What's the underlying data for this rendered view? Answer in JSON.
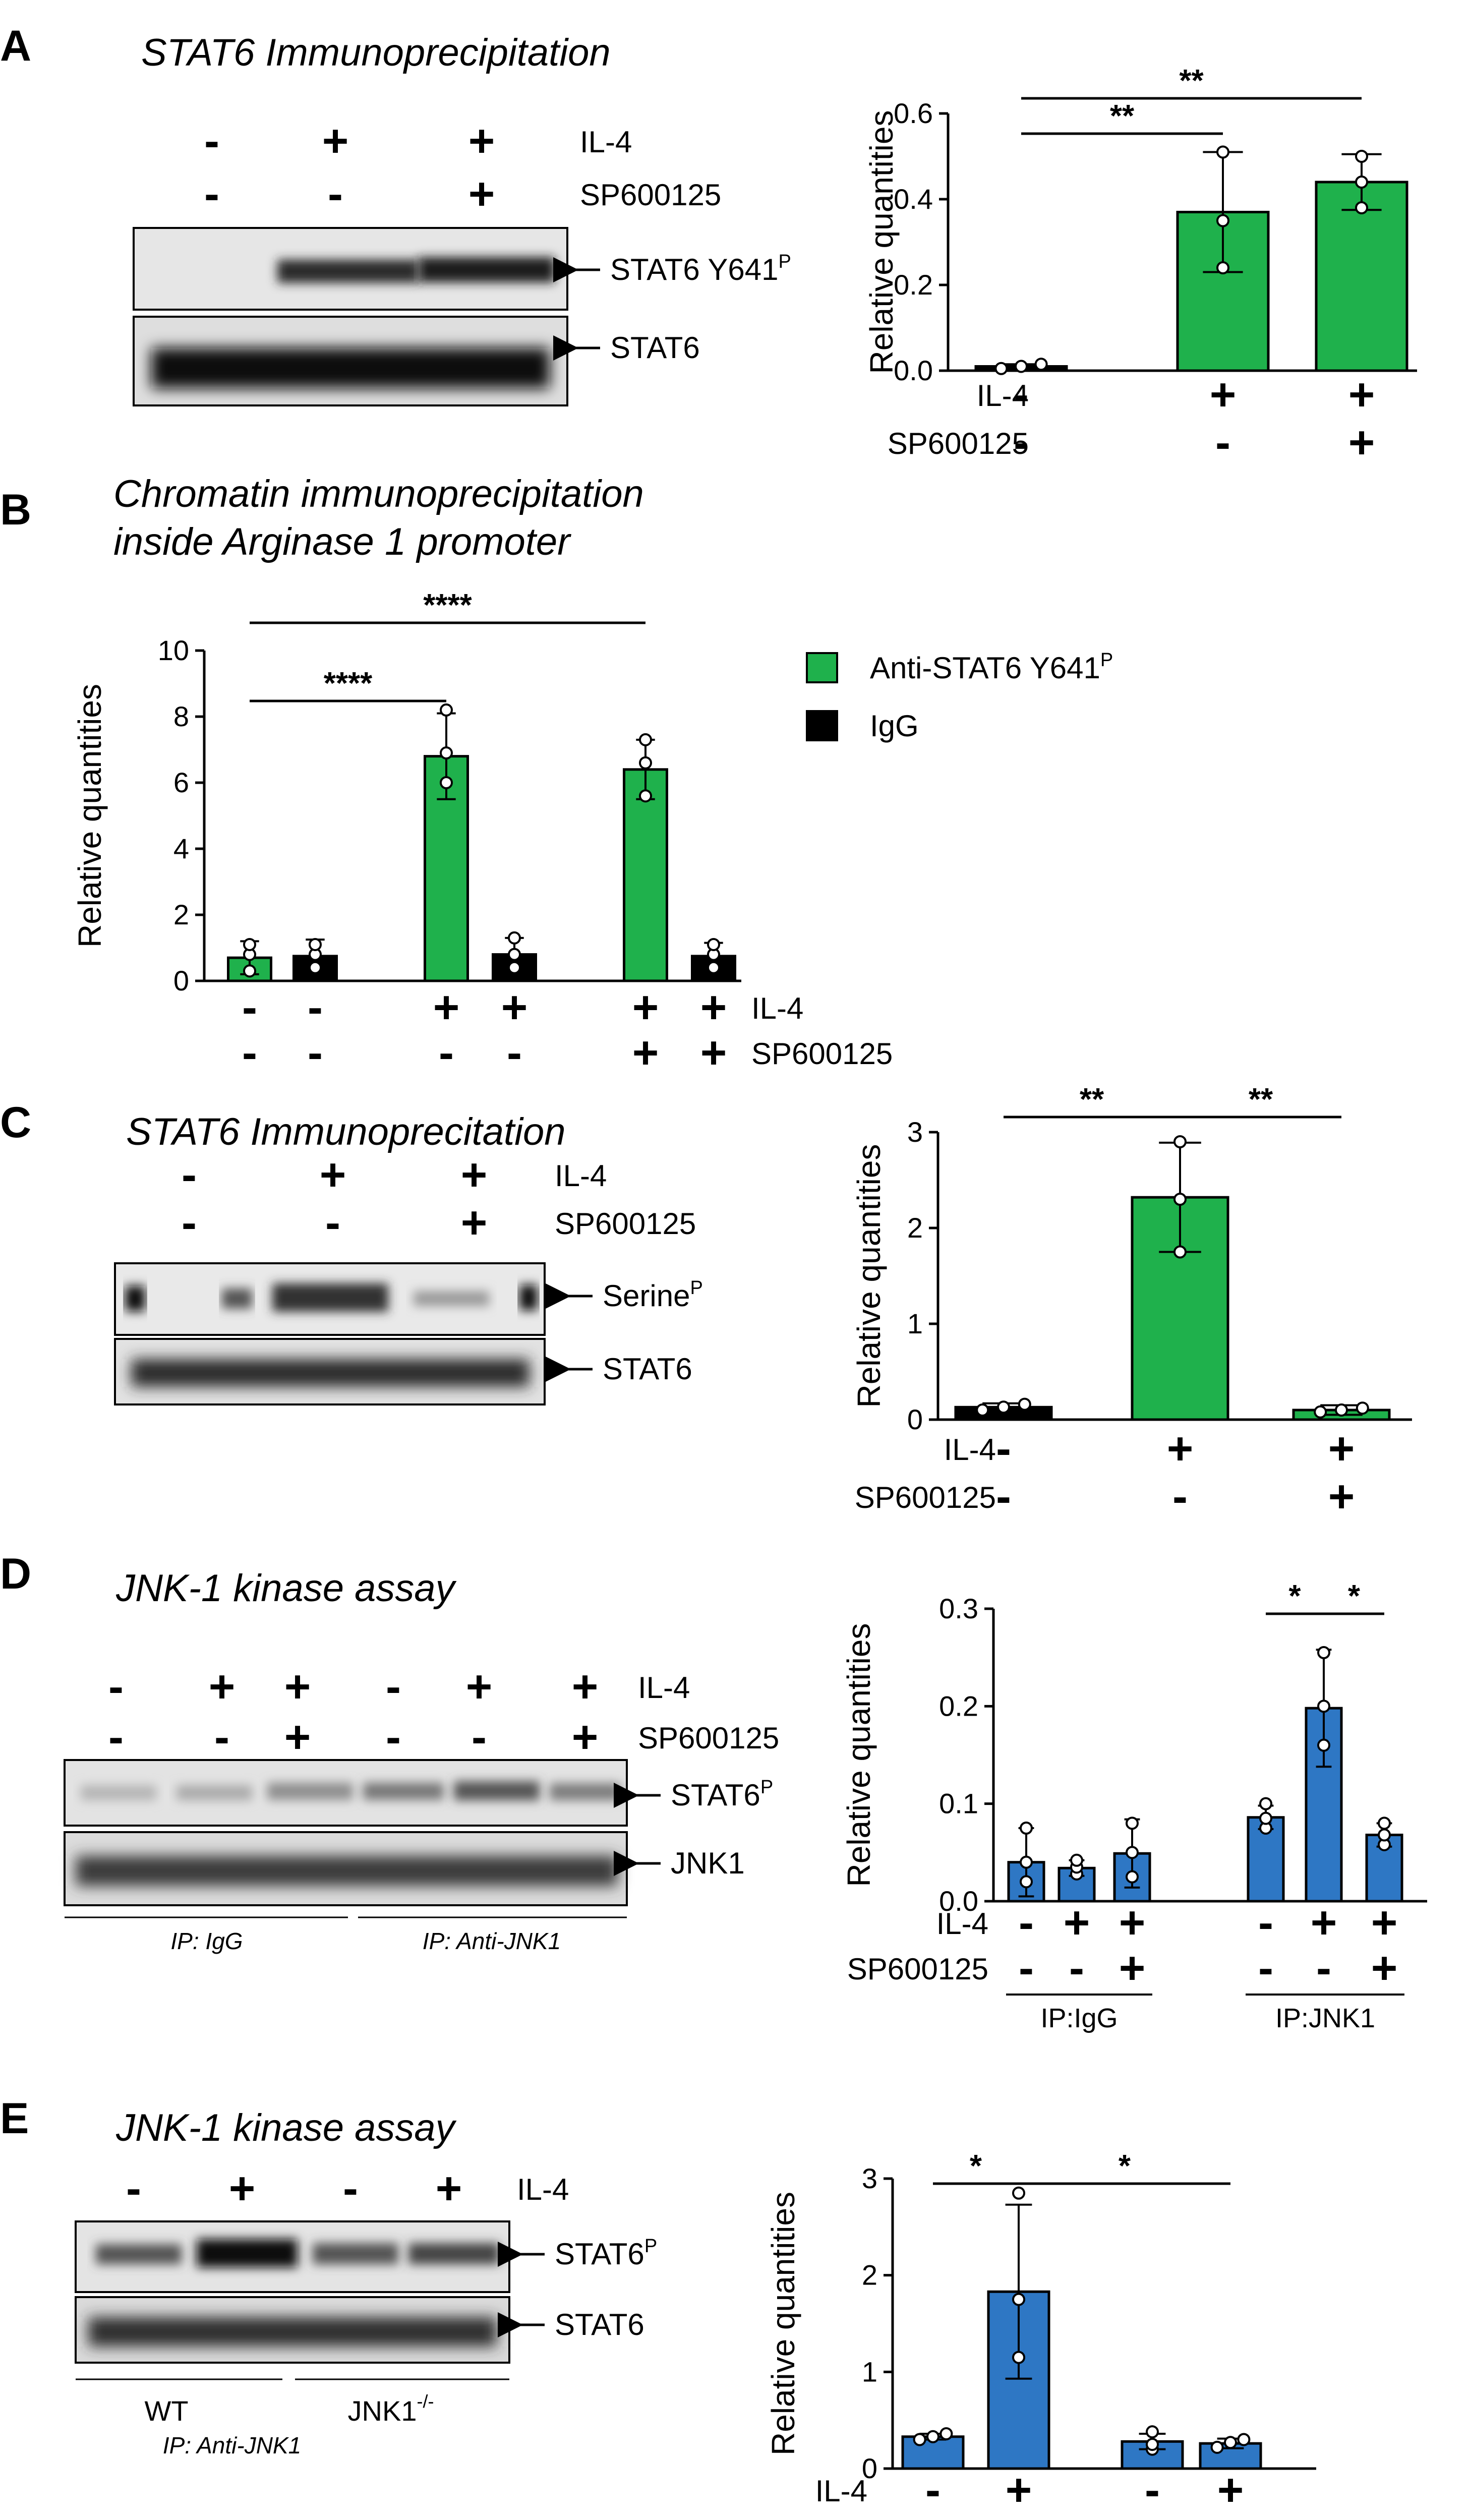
{
  "colors": {
    "green": "#1fb14c",
    "blue": "#2e77c4",
    "black": "#000000",
    "blot_bg": "#e4e4e4"
  },
  "panelA": {
    "letter": "A",
    "title": "STAT6 Immunoprecipitation",
    "rows": [
      {
        "label": "IL-4",
        "signs": [
          "-",
          "+",
          "+"
        ]
      },
      {
        "label": "SP600125",
        "signs": [
          "-",
          "-",
          "+"
        ]
      }
    ],
    "bands": [
      {
        "label": "STAT6 Y641",
        "sup": "P"
      },
      {
        "label": "STAT6",
        "sup": ""
      }
    ],
    "chart_data": {
      "type": "bar",
      "ylabel": "Relative quantities",
      "ylim": [
        0,
        0.6
      ],
      "yticks": [
        "0.0",
        "0.2",
        "0.4",
        "0.6"
      ],
      "values": [
        0.01,
        0.37,
        0.44
      ],
      "errors": [
        0.005,
        0.14,
        0.065
      ],
      "dots": [
        [
          0.005,
          0.01,
          0.015
        ],
        [
          0.24,
          0.35,
          0.51
        ],
        [
          0.38,
          0.44,
          0.5
        ]
      ],
      "colors": [
        "black",
        "green",
        "green"
      ],
      "rows": [
        {
          "label": "IL-4",
          "signs": [
            "-",
            "+",
            "+"
          ]
        },
        {
          "label": "SP600125",
          "signs": [
            "-",
            "-",
            "+"
          ]
        }
      ],
      "sig": [
        {
          "from": 0,
          "to": 1,
          "text": "**"
        },
        {
          "from": 0,
          "to": 2,
          "text": "**"
        }
      ]
    }
  },
  "panelB": {
    "letter": "B",
    "title_line1": "Chromatin immunoprecipitation",
    "title_line2": "inside Arginase 1 promoter",
    "legend": [
      {
        "label": "Anti-STAT6 Y641",
        "sup": "P",
        "color": "green"
      },
      {
        "label": "IgG",
        "sup": "",
        "color": "black"
      }
    ],
    "chart_data": {
      "type": "bar",
      "ylabel": "Relative quantities",
      "ylim": [
        0,
        10
      ],
      "yticks": [
        "0",
        "2",
        "4",
        "6",
        "8",
        "10"
      ],
      "values": [
        0.7,
        0.75,
        6.8,
        0.8,
        6.4,
        0.75
      ],
      "errors": [
        0.5,
        0.5,
        1.3,
        0.5,
        0.9,
        0.4
      ],
      "dots": [
        [
          0.3,
          0.8,
          1.1
        ],
        [
          0.4,
          0.8,
          1.1
        ],
        [
          6.0,
          6.9,
          8.2
        ],
        [
          0.4,
          0.8,
          1.3
        ],
        [
          5.6,
          6.6,
          7.3
        ],
        [
          0.4,
          0.8,
          1.1
        ]
      ],
      "colors": [
        "green",
        "black",
        "green",
        "black",
        "green",
        "black"
      ],
      "rows": [
        {
          "label": "IL-4",
          "signs": [
            "-",
            "-",
            "+",
            "+",
            "+",
            "+"
          ]
        },
        {
          "label": "SP600125",
          "signs": [
            "-",
            "-",
            "-",
            "-",
            "+",
            "+"
          ]
        }
      ],
      "sig": [
        {
          "from": 0,
          "to": 2,
          "text": "****"
        },
        {
          "from": 0,
          "to": 4,
          "text": "****"
        }
      ]
    }
  },
  "panelC": {
    "letter": "C",
    "title": "STAT6 Immunoprecitation",
    "rows": [
      {
        "label": "IL-4",
        "signs": [
          "-",
          "+",
          "+"
        ]
      },
      {
        "label": "SP600125",
        "signs": [
          "-",
          "-",
          "+"
        ]
      }
    ],
    "bands": [
      {
        "label": "Serine",
        "sup": "P"
      },
      {
        "label": "STAT6",
        "sup": ""
      }
    ],
    "chart_data": {
      "type": "bar",
      "ylabel": "Relative quantities",
      "ylim": [
        0,
        3
      ],
      "yticks": [
        "0",
        "1",
        "2",
        "3"
      ],
      "values": [
        0.13,
        2.32,
        0.1
      ],
      "errors": [
        0.04,
        0.57,
        0.05
      ],
      "dots": [
        [
          0.1,
          0.13,
          0.16
        ],
        [
          1.75,
          2.3,
          2.9
        ],
        [
          0.08,
          0.1,
          0.12
        ]
      ],
      "colors": [
        "black",
        "green",
        "green"
      ],
      "rows": [
        {
          "label": "IL-4",
          "signs": [
            "-",
            "+",
            "+"
          ]
        },
        {
          "label": "SP600125",
          "signs": [
            "-",
            "-",
            "+"
          ]
        }
      ],
      "sig": [
        {
          "from": 0,
          "to": 1,
          "text": "**"
        },
        {
          "from": 1,
          "to": 2,
          "text": "**"
        }
      ]
    }
  },
  "panelD": {
    "letter": "D",
    "title": "JNK-1 kinase assay",
    "rows": [
      {
        "label": "IL-4",
        "signs": [
          "-",
          "+",
          "+",
          "-",
          "+",
          "+"
        ]
      },
      {
        "label": "SP600125",
        "signs": [
          "-",
          "-",
          "+",
          "-",
          "-",
          "+"
        ]
      }
    ],
    "bands": [
      {
        "label": "STAT6",
        "sup": "P"
      },
      {
        "label": "JNK1",
        "sup": ""
      }
    ],
    "groups": [
      "IP: IgG",
      "IP: Anti-JNK1"
    ],
    "chart_data": {
      "type": "bar",
      "ylabel": "Relative quantities",
      "ylim": [
        0,
        0.3
      ],
      "yticks": [
        "0.0",
        "0.1",
        "0.2",
        "0.3"
      ],
      "values": [
        0.04,
        0.034,
        0.049,
        0.086,
        0.198,
        0.068
      ],
      "errors": [
        0.035,
        0.008,
        0.035,
        0.012,
        0.06,
        0.012
      ],
      "dots": [
        [
          0.02,
          0.04,
          0.075
        ],
        [
          0.028,
          0.035,
          0.042
        ],
        [
          0.025,
          0.05,
          0.08
        ],
        [
          0.075,
          0.085,
          0.1
        ],
        [
          0.16,
          0.2,
          0.255
        ],
        [
          0.058,
          0.068,
          0.08
        ]
      ],
      "colors": [
        "blue",
        "blue",
        "blue",
        "blue",
        "blue",
        "blue"
      ],
      "rows": [
        {
          "label": "IL-4",
          "signs": [
            "-",
            "+",
            "+",
            "-",
            "+",
            "+"
          ]
        },
        {
          "label": "SP600125",
          "signs": [
            "-",
            "-",
            "+",
            "-",
            "-",
            "+"
          ]
        }
      ],
      "groups": [
        "IP:IgG",
        "IP:JNK1"
      ],
      "sig": [
        {
          "from": 3,
          "to": 4,
          "text": "*"
        },
        {
          "from": 4,
          "to": 5,
          "text": "*"
        }
      ]
    }
  },
  "panelE": {
    "letter": "E",
    "title": "JNK-1 kinase assay",
    "rows": [
      {
        "label": "IL-4",
        "signs": [
          "-",
          "+",
          "-",
          "+"
        ]
      }
    ],
    "bands": [
      {
        "label": "STAT6",
        "sup": "P"
      },
      {
        "label": "STAT6",
        "sup": ""
      }
    ],
    "groups": [
      {
        "label": "WT",
        "sup": ""
      },
      {
        "label": "JNK1",
        "sup": "-/-"
      }
    ],
    "footer": "IP: Anti-JNK1",
    "chart_data": {
      "type": "bar",
      "ylabel": "Relative quantities",
      "ylim": [
        0,
        3
      ],
      "yticks": [
        "0",
        "1",
        "2",
        "3"
      ],
      "values": [
        0.33,
        1.83,
        0.28,
        0.26
      ],
      "errors": [
        0.03,
        0.9,
        0.08,
        0.05
      ],
      "dots": [
        [
          0.3,
          0.33,
          0.36
        ],
        [
          1.15,
          1.75,
          2.85
        ],
        [
          0.2,
          0.25,
          0.38
        ],
        [
          0.22,
          0.27,
          0.3
        ]
      ],
      "colors": [
        "blue",
        "blue",
        "blue",
        "blue"
      ],
      "rows": [
        {
          "label": "IL-4",
          "signs": [
            "-",
            "+",
            "-",
            "+"
          ]
        }
      ],
      "groups": [
        {
          "label": "WT",
          "sup": ""
        },
        {
          "label": "JNK1",
          "sup": "-/-"
        }
      ],
      "sig": [
        {
          "from": 0,
          "to": 1,
          "text": "*"
        },
        {
          "from": 1,
          "to": 3,
          "text": "*"
        }
      ]
    }
  }
}
